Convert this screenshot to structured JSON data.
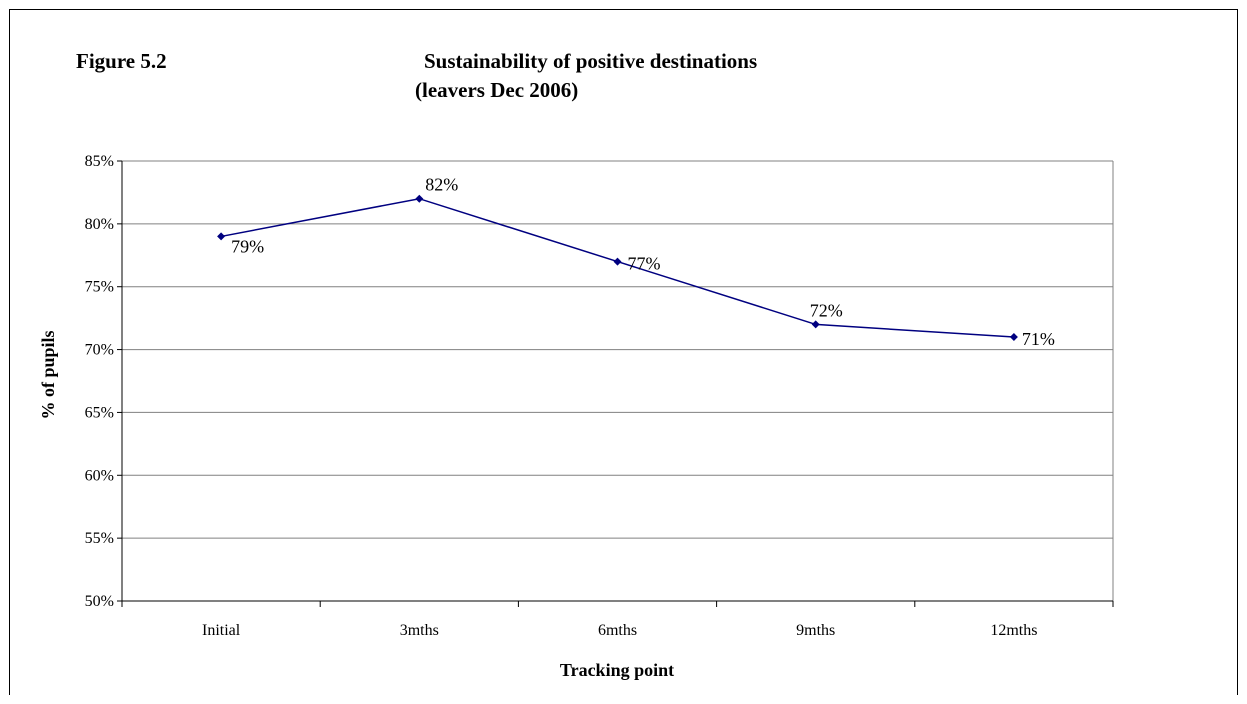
{
  "figure": {
    "label": "Figure 5.2",
    "title_line1": "Sustainability of positive destinations",
    "title_line2": "(leavers Dec 2006)"
  },
  "chart_data": {
    "type": "line",
    "categories": [
      "Initial",
      "3mths",
      "6mths",
      "9mths",
      "12mths"
    ],
    "series": [
      {
        "values": [
          79,
          82,
          77,
          72,
          71
        ],
        "color": "#000080"
      }
    ],
    "data_labels": [
      "79%",
      "82%",
      "77%",
      "72%",
      "71%"
    ],
    "xlabel": "Tracking point",
    "ylabel": "% of pupils",
    "ylim": [
      50,
      85
    ],
    "yticks": [
      50,
      55,
      60,
      65,
      70,
      75,
      80,
      85
    ],
    "ytick_labels": [
      "50%",
      "55%",
      "60%",
      "65%",
      "70%",
      "75%",
      "80%",
      "85%"
    ],
    "grid": true,
    "legend": "none"
  }
}
